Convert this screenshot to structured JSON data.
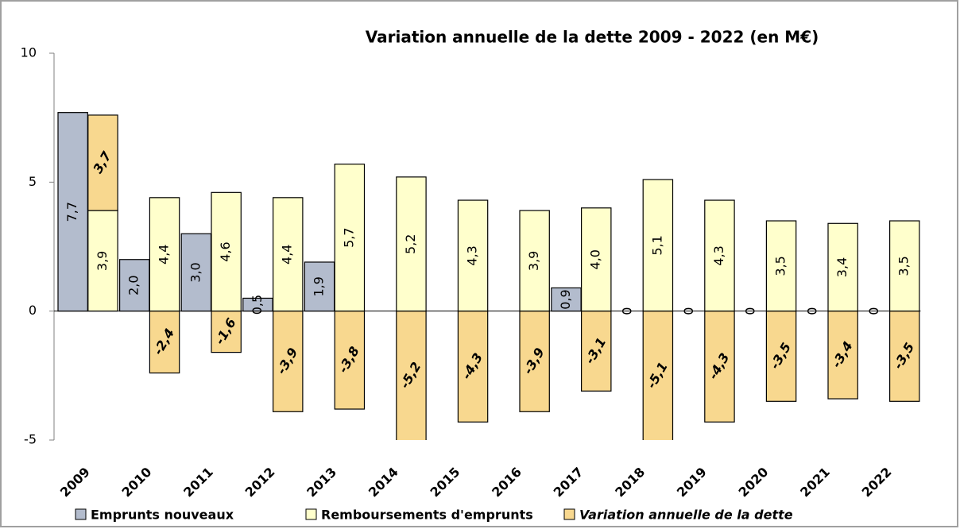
{
  "chart_data": {
    "type": "bar",
    "title": "Variation annuelle de la dette  2009 - 2022 (en M€)",
    "categories": [
      "2009",
      "2010",
      "2011",
      "2012",
      "2013",
      "2014",
      "2015",
      "2016",
      "2017",
      "2018",
      "2019",
      "2020",
      "2021",
      "2022"
    ],
    "series": [
      {
        "name": "Emprunts nouveaux",
        "color": "#b3bccd",
        "values": [
          7.7,
          2.0,
          3.0,
          0.5,
          1.9,
          null,
          null,
          null,
          0.9,
          0,
          0,
          0,
          0,
          0
        ],
        "value_labels": [
          "7,7",
          "2,0",
          "3,0",
          "0,5",
          "1,9",
          null,
          null,
          null,
          "0,9",
          "0",
          "0",
          "0",
          "0",
          "0"
        ]
      },
      {
        "name": "Remboursements d'emprunts",
        "color": "#ffffcc",
        "values": [
          3.9,
          4.4,
          4.6,
          4.4,
          5.7,
          5.2,
          4.3,
          3.9,
          4.0,
          5.1,
          4.3,
          3.5,
          3.4,
          3.5
        ],
        "value_labels": [
          "3,9",
          "4,4",
          "4,6",
          "4,4",
          "5,7",
          "5,2",
          "4,3",
          "3,9",
          "4,0",
          "5,1",
          "4,3",
          "3,5",
          "3,4",
          "3,5"
        ]
      },
      {
        "name": "Variation annuelle de la dette",
        "color": "#f8d88f",
        "values": [
          3.7,
          -2.4,
          -1.6,
          -3.9,
          -3.8,
          -5.2,
          -4.3,
          -3.9,
          -3.1,
          -5.1,
          -4.3,
          -3.5,
          -3.4,
          -3.5
        ],
        "value_labels": [
          "3,7",
          "-2,4",
          "-1,6",
          "-3,9",
          "-3,8",
          "-5,2",
          "-4,3",
          "-3,9",
          "-3,1",
          "-5,1",
          "-4,3",
          "-3,5",
          "-3,4",
          "-3,5"
        ]
      }
    ],
    "ylim": [
      -5,
      10
    ],
    "yticks": [
      -5,
      0,
      5,
      10
    ],
    "grid": false,
    "legend": "bottom"
  }
}
